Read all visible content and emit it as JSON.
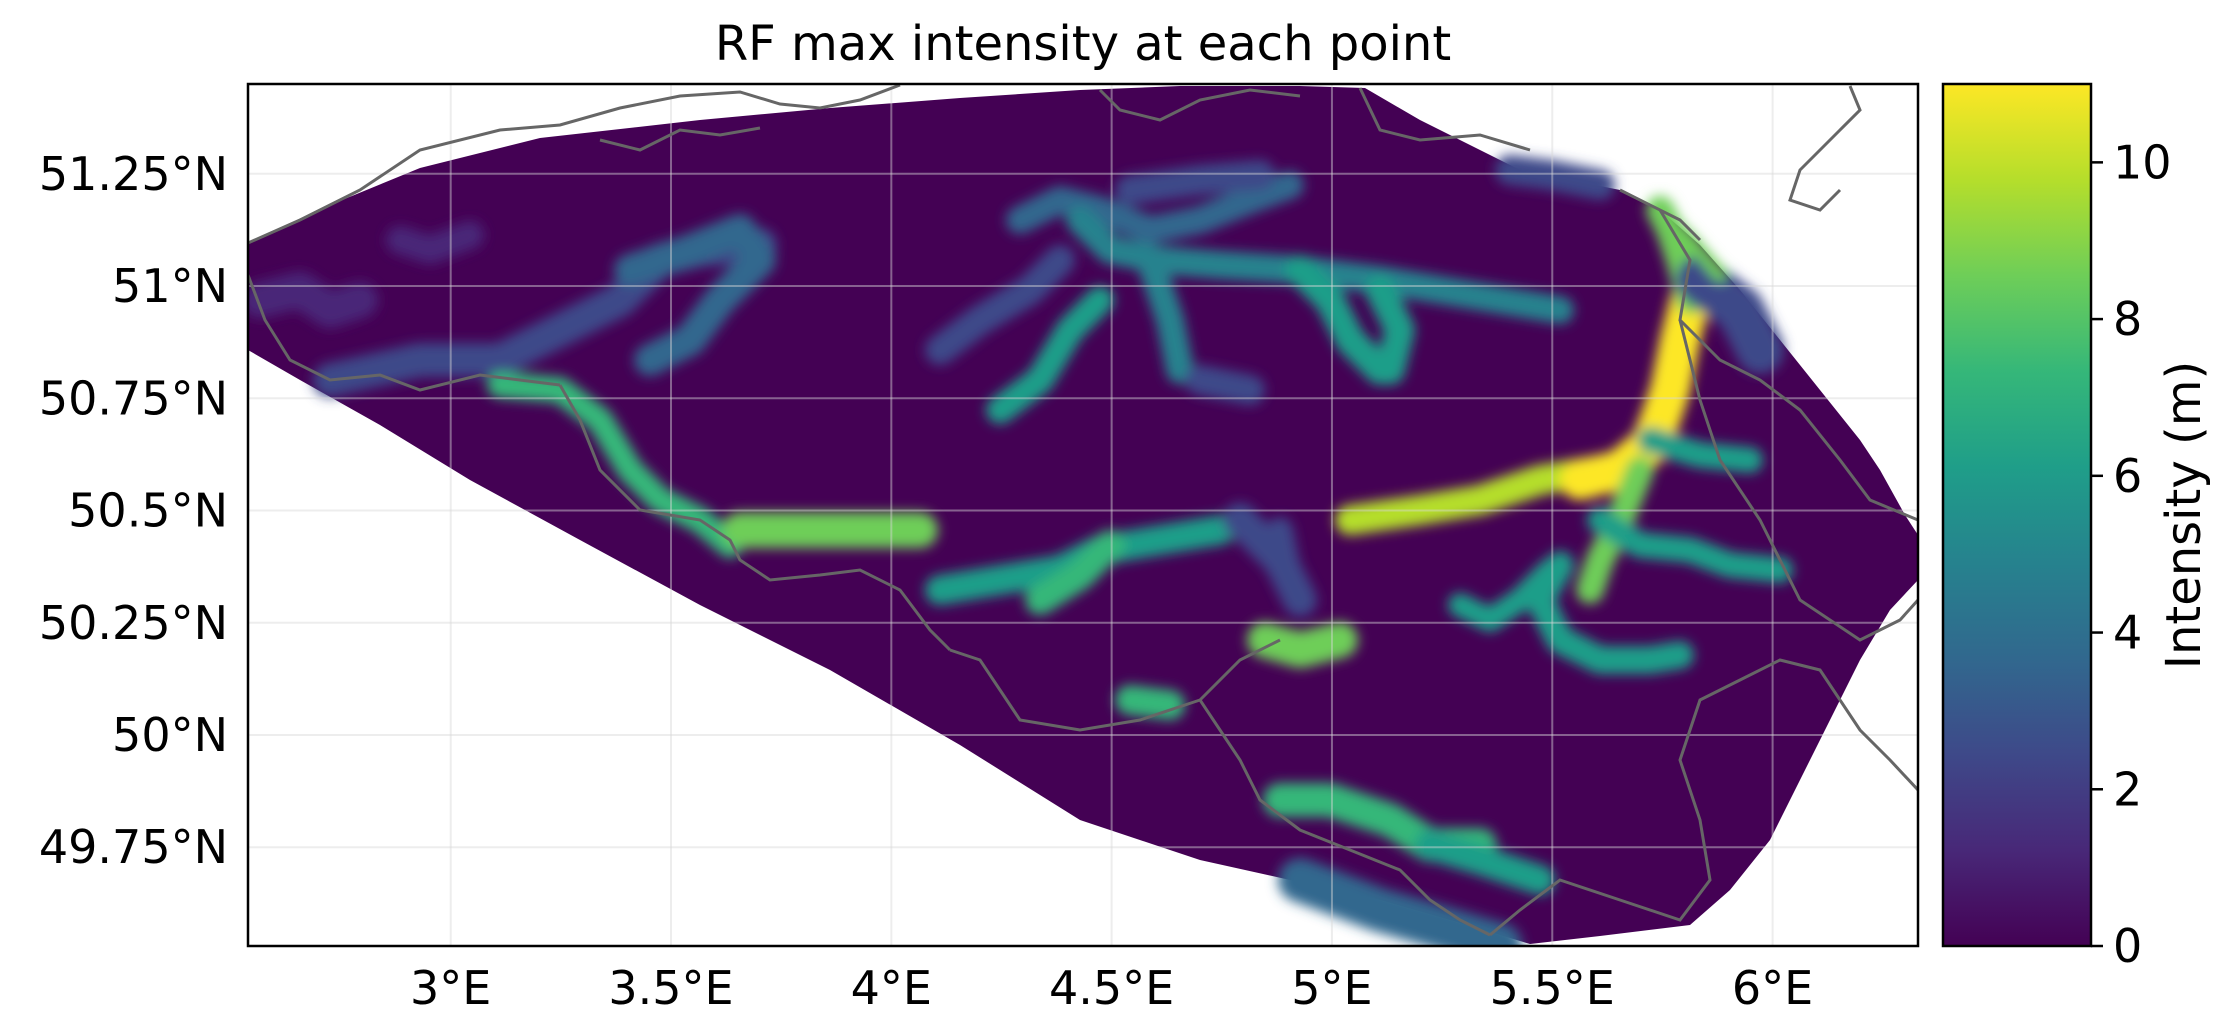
{
  "title": "RF max intensity at each point",
  "colorbar": {
    "label": "Intensity (m)",
    "min": 0,
    "max": 11,
    "ticks": [
      0,
      2,
      4,
      6,
      8,
      10
    ],
    "colormap": "viridis",
    "colors": [
      "#440154",
      "#482878",
      "#3e4989",
      "#31688e",
      "#26828e",
      "#1f9e89",
      "#35b779",
      "#6ece58",
      "#b5de2b",
      "#fde725"
    ]
  },
  "map": {
    "lon_range": [
      2.54,
      6.33
    ],
    "lat_range": [
      49.53,
      51.45
    ],
    "lon_ticks": [
      3,
      3.5,
      4,
      4.5,
      5,
      5.5,
      6
    ],
    "lon_tick_labels": [
      "3°E",
      "3.5°E",
      "4°E",
      "4.5°E",
      "5°E",
      "5.5°E",
      "6°E"
    ],
    "lat_ticks": [
      49.75,
      50,
      50.25,
      50.5,
      50.75,
      51,
      51.25
    ],
    "lat_tick_labels": [
      "49.75°N",
      "50°N",
      "50.25°N",
      "50.5°N",
      "50.75°N",
      "51°N",
      "51.25°N"
    ],
    "gridlines": true,
    "background_color": "#440154",
    "border_color": "#666666"
  }
}
